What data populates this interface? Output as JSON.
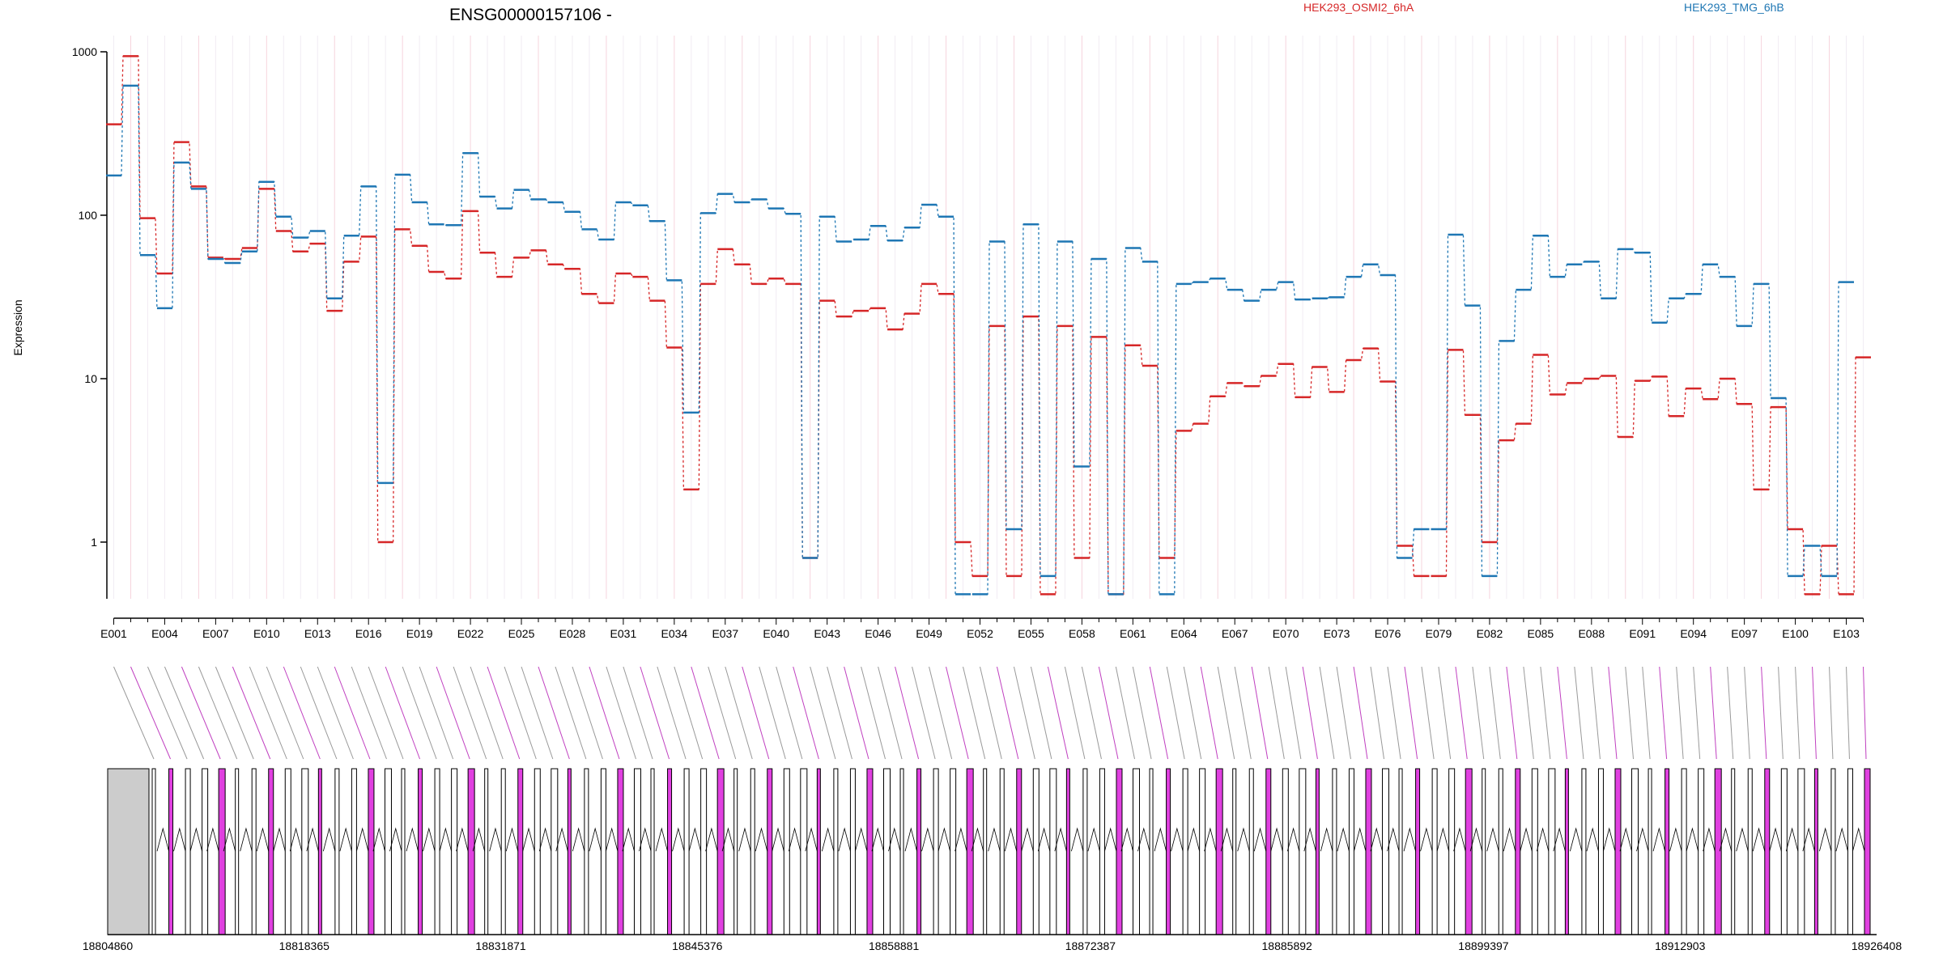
{
  "chart_data": {
    "type": "line",
    "title": "ENSG00000157106 -",
    "ylabel": "Expression",
    "yscale": "log",
    "ylim": [
      0.45,
      1000
    ],
    "yticks": [
      "1",
      "10",
      "100",
      "1000"
    ],
    "grid": "vertical",
    "series": [
      {
        "name": "HEK293_OSMI2_6hA",
        "color": "#d62728",
        "values": [
          360,
          940,
          96,
          44,
          280,
          150,
          55,
          54,
          63,
          145,
          80,
          60,
          67,
          26,
          52,
          74,
          1,
          82,
          65,
          45,
          41,
          106,
          59,
          42,
          55,
          61,
          50,
          47,
          33,
          29,
          44,
          42,
          30,
          15.5,
          2.1,
          38,
          62,
          50,
          38,
          41,
          38,
          0.8,
          30,
          24,
          26,
          27,
          20,
          25,
          38,
          33,
          1,
          0.62,
          21,
          0.62,
          24,
          0.48,
          21,
          0.8,
          18,
          0.48,
          16,
          12,
          0.8,
          4.8,
          5.3,
          7.8,
          9.4,
          9,
          10.4,
          12.3,
          7.7,
          11.8,
          8.3,
          13,
          15.3,
          9.6,
          0.95,
          0.62,
          0.62,
          15,
          6,
          1,
          4.2,
          5.3,
          14,
          8,
          9.4,
          10,
          10.4,
          4.4,
          9.7,
          10.3,
          5.9,
          8.7,
          7.5,
          10,
          7,
          2.1,
          6.7,
          1.2,
          0.48,
          0.95,
          0.48,
          13.5
        ]
      },
      {
        "name": "HEK293_TMG_6hB",
        "color": "#1f77b4",
        "values": [
          175,
          620,
          57,
          27,
          210,
          145,
          54,
          51,
          60,
          160,
          98,
          73,
          80,
          31,
          75,
          150,
          2.3,
          177,
          120,
          88,
          87,
          240,
          130,
          110,
          143,
          125,
          120,
          105,
          82,
          71,
          120,
          115,
          92,
          40,
          6.2,
          103,
          135,
          120,
          125,
          110,
          102,
          0.8,
          98,
          69,
          71,
          86,
          70,
          84,
          116,
          98,
          0.48,
          0.48,
          69,
          1.2,
          88,
          0.62,
          69,
          2.9,
          54,
          0.48,
          63,
          52,
          0.48,
          38,
          39,
          41,
          35,
          30,
          35,
          39,
          30.5,
          31,
          31.5,
          42,
          50,
          43,
          0.8,
          1.2,
          1.2,
          76,
          28,
          0.62,
          17,
          35,
          75,
          42,
          50,
          52,
          31,
          62,
          59,
          22,
          31,
          33,
          50,
          42,
          21,
          38,
          7.6,
          0.62,
          0.95,
          0.62,
          39
        ]
      }
    ],
    "exon_labels": [
      "E001",
      "E004",
      "E007",
      "E010",
      "E013",
      "E016",
      "E019",
      "E022",
      "E025",
      "E028",
      "E031",
      "E034",
      "E037",
      "E040",
      "E043",
      "E046",
      "E049",
      "E052",
      "E055",
      "E058",
      "E061",
      "E064",
      "E067",
      "E070",
      "E073",
      "E076",
      "E079",
      "E082",
      "E085",
      "E088",
      "E091",
      "E094",
      "E097",
      "E100",
      "E103"
    ],
    "genomic_positions": [
      "18804860",
      "18818365",
      "18831871",
      "18845376",
      "18858881",
      "18872387",
      "18885892",
      "18899397",
      "18912903",
      "18926408"
    ]
  }
}
